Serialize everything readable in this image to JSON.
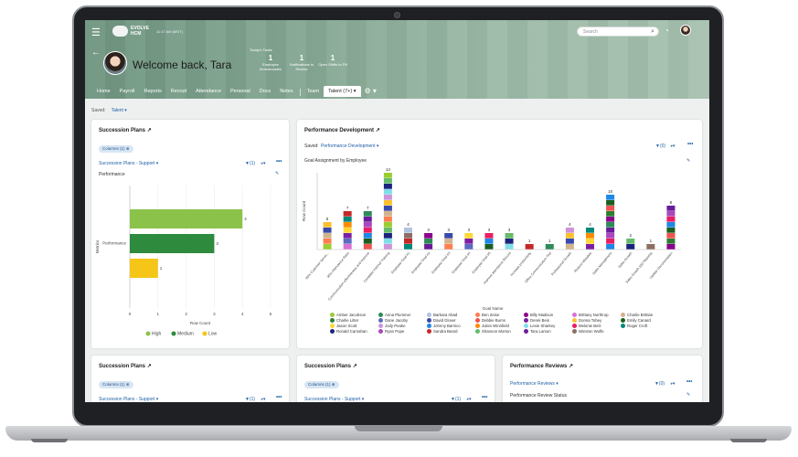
{
  "app": {
    "logo_text": "EVOLVE HCM",
    "time": "11:17 AM (MST)",
    "search_placeholder": "Search",
    "welcome": "Welcome back, Tara",
    "today_label": "Today's Tasks",
    "stats": [
      {
        "num": "1",
        "label": "Employee Anniversaries"
      },
      {
        "num": "1",
        "label": "Notifications to Review"
      },
      {
        "num": "1",
        "label": "Open Shifts to Fill"
      }
    ],
    "tabs": [
      "Home",
      "Payroll",
      "Reports",
      "Recruit",
      "Attendance",
      "Personal",
      "Docs",
      "Notes",
      "Team",
      "Talent (7+)"
    ],
    "saved_label": "Saved:",
    "saved_value": "Talent"
  },
  "succession": {
    "title": "Succession Plans",
    "pill": "Columns (1)",
    "view": "Succession Plans - Support",
    "filter": "(1)",
    "subtitle": "Performance",
    "ylabel": "Metrics",
    "xlabel": "Row Count",
    "category": "Performance",
    "legend": [
      {
        "name": "High",
        "color": "#8bc34a"
      },
      {
        "name": "Medium",
        "color": "#2e8b3e"
      },
      {
        "name": "Low",
        "color": "#f5c518"
      }
    ]
  },
  "perf_dev": {
    "title": "Performance Development",
    "saved_label": "Saved:",
    "view": "Performance Development",
    "filter": "(0)",
    "chart_title": "Goal Assignment by Employee",
    "ylabel": "Row Count",
    "xlabel": "Goal Name"
  },
  "bottom": {
    "p1_title": "Succession Plans",
    "p1_pill": "Columns (1)",
    "p1_view": "Succession Plans - Support",
    "p1_filter": "(1)",
    "p2_title": "Succession Plans",
    "p2_pill": "Columns (1)",
    "p2_view": "Succession Plans - Support",
    "p2_filter": "(1)",
    "p3_title": "Performance Reviews",
    "p3_view": "Performance Reviews",
    "p3_filter": "(0)",
    "p3_subtitle": "Performance Review Status"
  },
  "chart_data": [
    {
      "type": "bar",
      "orientation": "horizontal",
      "categories": [
        "Performance"
      ],
      "series": [
        {
          "name": "High",
          "values": [
            4
          ]
        },
        {
          "name": "Medium",
          "values": [
            3
          ]
        },
        {
          "name": "Low",
          "values": [
            1
          ]
        }
      ],
      "xlabel": "Row Count",
      "ylabel": "Metrics",
      "xlim": [
        0,
        5
      ],
      "xticks": [
        0,
        1,
        2,
        3,
        4,
        5
      ],
      "legend": "bottom"
    },
    {
      "type": "bar",
      "stacked": true,
      "title": "Goal Assignment by Employee",
      "xlabel": "Goal Name",
      "ylabel": "Row Count",
      "categories": [
        "95% Customer Servic...",
        "95% Attendance Ratio",
        "Communication effectiveness and Improve",
        "Complete Internal Training",
        "Employee Goal #1",
        "Employee Goal #2",
        "Employee Goal #3",
        "Employee Goal #4",
        "Employee Goal #5",
        "Improve attendance Record",
        "Increase productivity",
        "Office Communication Tool",
        "Professional Growth",
        "Reduce Mistakes",
        "Sales Management",
        "Sales Growth",
        "Sales Growth (Q3 Reports)",
        "Update Documentation"
      ],
      "totals": [
        5,
        7,
        7,
        14,
        4,
        3,
        3,
        3,
        3,
        3,
        1,
        1,
        4,
        4,
        10,
        2,
        1,
        8
      ],
      "legend": "bottom",
      "employees": [
        "Amber Jacobson",
        "Anna Plummer",
        "Barbara Abad",
        "Ben Zeise",
        "Billy Madison",
        "Brittany Northrop",
        "Charlie Brittian",
        "Charlie Litter",
        "Dane Jacoby",
        "David Glover",
        "Debbie Burns",
        "Derek Bein",
        "Donna Tobey",
        "Emily Canard",
        "Jason Scott",
        "Jody Peake",
        "Johnny Barnico",
        "Julies Winnfield",
        "Lexie Sharkey",
        "Melonie Belz",
        "Roger Croft",
        "Ronald Carnahan",
        "Ryan Pope",
        "Sandra Beard",
        "Shannon Morton",
        "Tara Larson",
        "Winston Wolfe"
      ],
      "colors": [
        "#9acd32",
        "#2e8b57",
        "#b0c4de",
        "#ff7f50",
        "#8b008b",
        "#da70d6",
        "#d2b48c",
        "#2e7d32",
        "#5c6bc0",
        "#3949ab",
        "#ef5350",
        "#7b1fa2",
        "#fbc02d",
        "#1b5e20",
        "#fdd835",
        "#ce93d8",
        "#1e88e5",
        "#fb8c00",
        "#80deea",
        "#e91e63",
        "#00897b",
        "#1a237e",
        "#ab47bc",
        "#c62828",
        "#66bb6a",
        "#6a1b9a",
        "#8d6e63"
      ]
    }
  ]
}
